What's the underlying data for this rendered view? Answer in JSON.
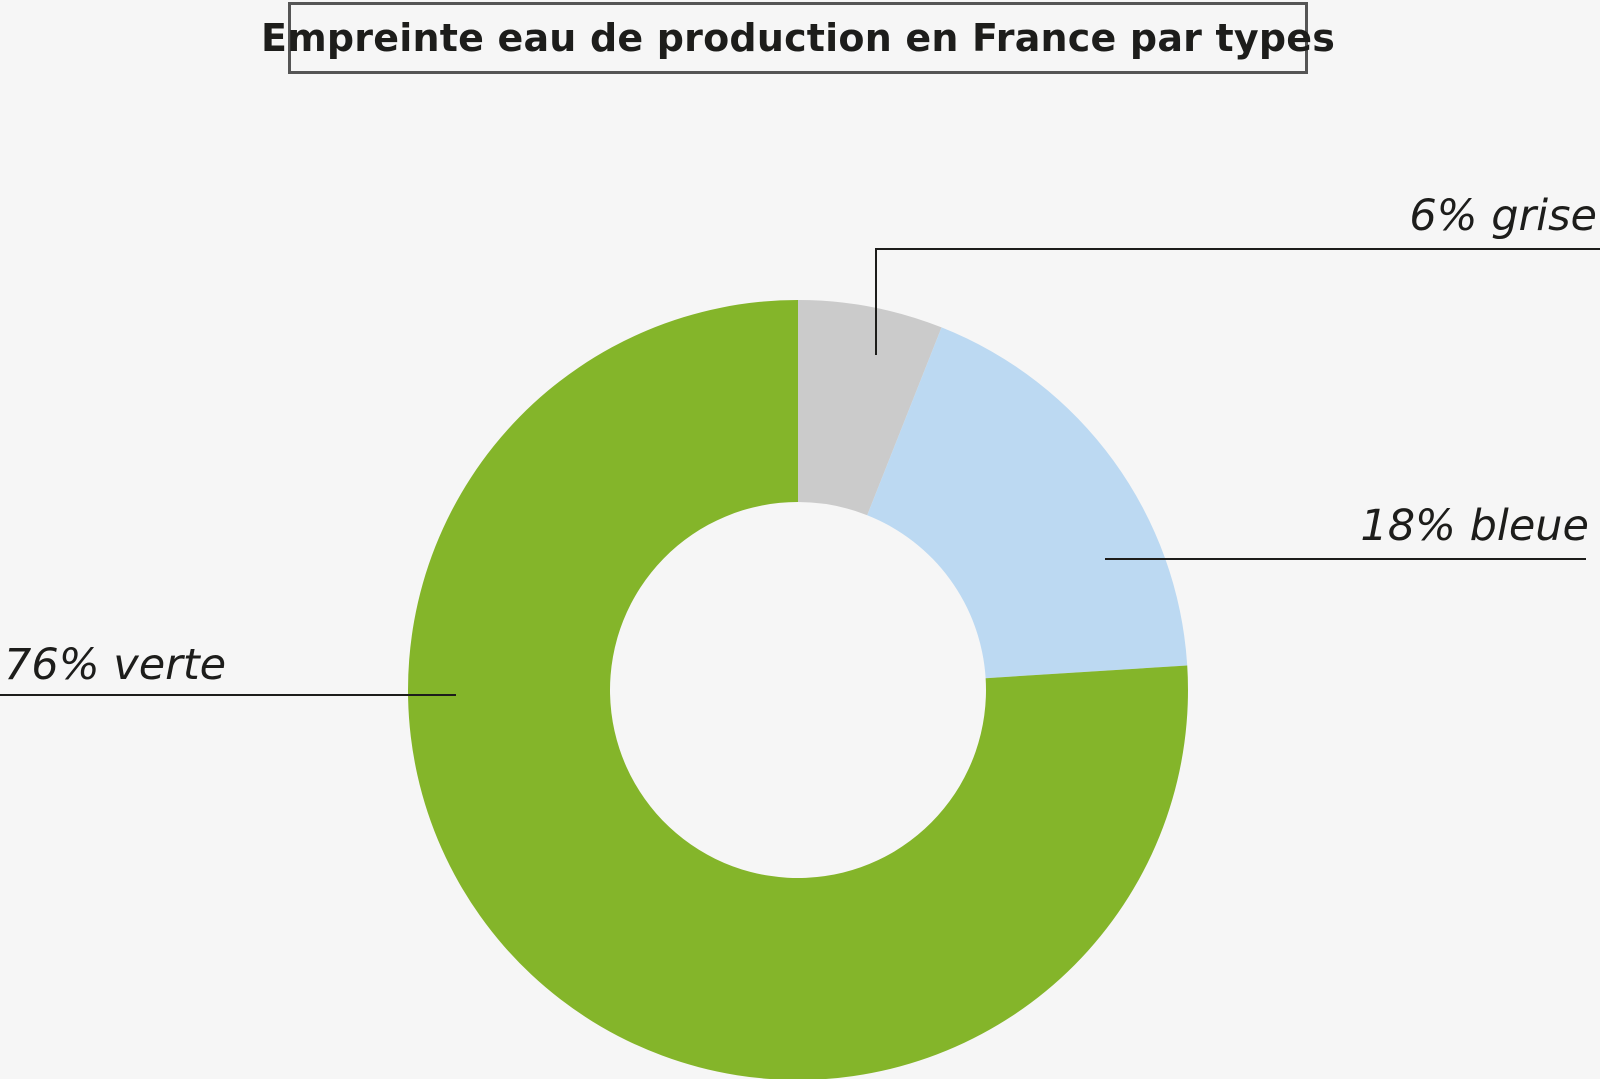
{
  "chart_data": {
    "type": "pie",
    "donut": true,
    "title": "Empreinte eau de production en France par types",
    "slices": [
      {
        "key": "grise",
        "label": "6% grise",
        "value": 6,
        "color": "#cbcbcb"
      },
      {
        "key": "bleue",
        "label": "18% bleue",
        "value": 18,
        "color": "#bcd9f2"
      },
      {
        "key": "verte",
        "label": "76% verte",
        "value": 76,
        "color": "#84b52a"
      }
    ],
    "start_angle_deg": 0,
    "direction": "clockwise"
  }
}
